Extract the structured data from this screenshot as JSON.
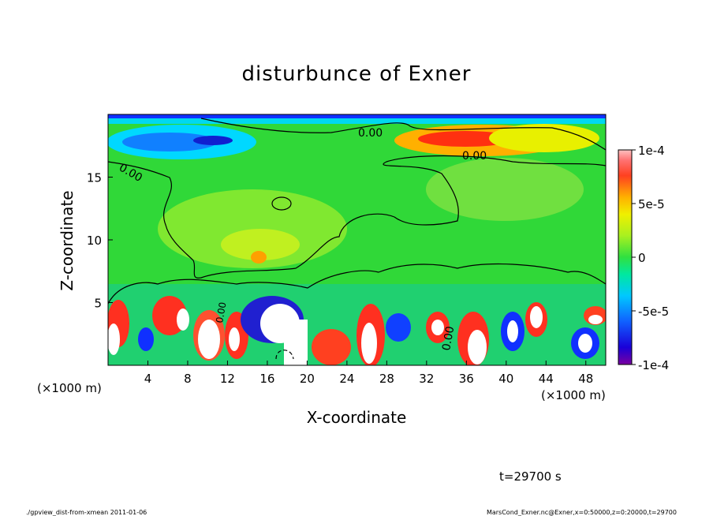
{
  "chart_data": {
    "type": "heatmap",
    "title": "disturbunce of Exner",
    "xlabel": "X-coordinate",
    "ylabel": "Z-coordinate",
    "x_unit_left": "(×1000 m)",
    "x_unit_right": "(×1000 m)",
    "xlim": [
      0,
      50
    ],
    "ylim": [
      0,
      20
    ],
    "x_ticks": [
      4,
      8,
      12,
      16,
      20,
      24,
      28,
      32,
      36,
      40,
      44,
      48
    ],
    "y_ticks": [
      5,
      10,
      15
    ],
    "colorbar": {
      "vmin": -0.0001,
      "vmax": 0.0001,
      "labels": [
        "1e-4",
        "5e-5",
        "0",
        "-5e-5",
        "-1e-4"
      ],
      "label_values": [
        0.0001,
        5e-05,
        0,
        -5e-05,
        -0.0001
      ]
    },
    "contour_labels": [
      "0.00",
      "0.00",
      "0.00",
      "0.00",
      "0.00"
    ],
    "time_label": "t=29700 s",
    "footer_left": "./gpview_dist-from-xmean  2011-01-06",
    "footer_right": "MarsCond_Exner.nc@Exner,x=0:50000,z=0:20000,t=29700"
  }
}
